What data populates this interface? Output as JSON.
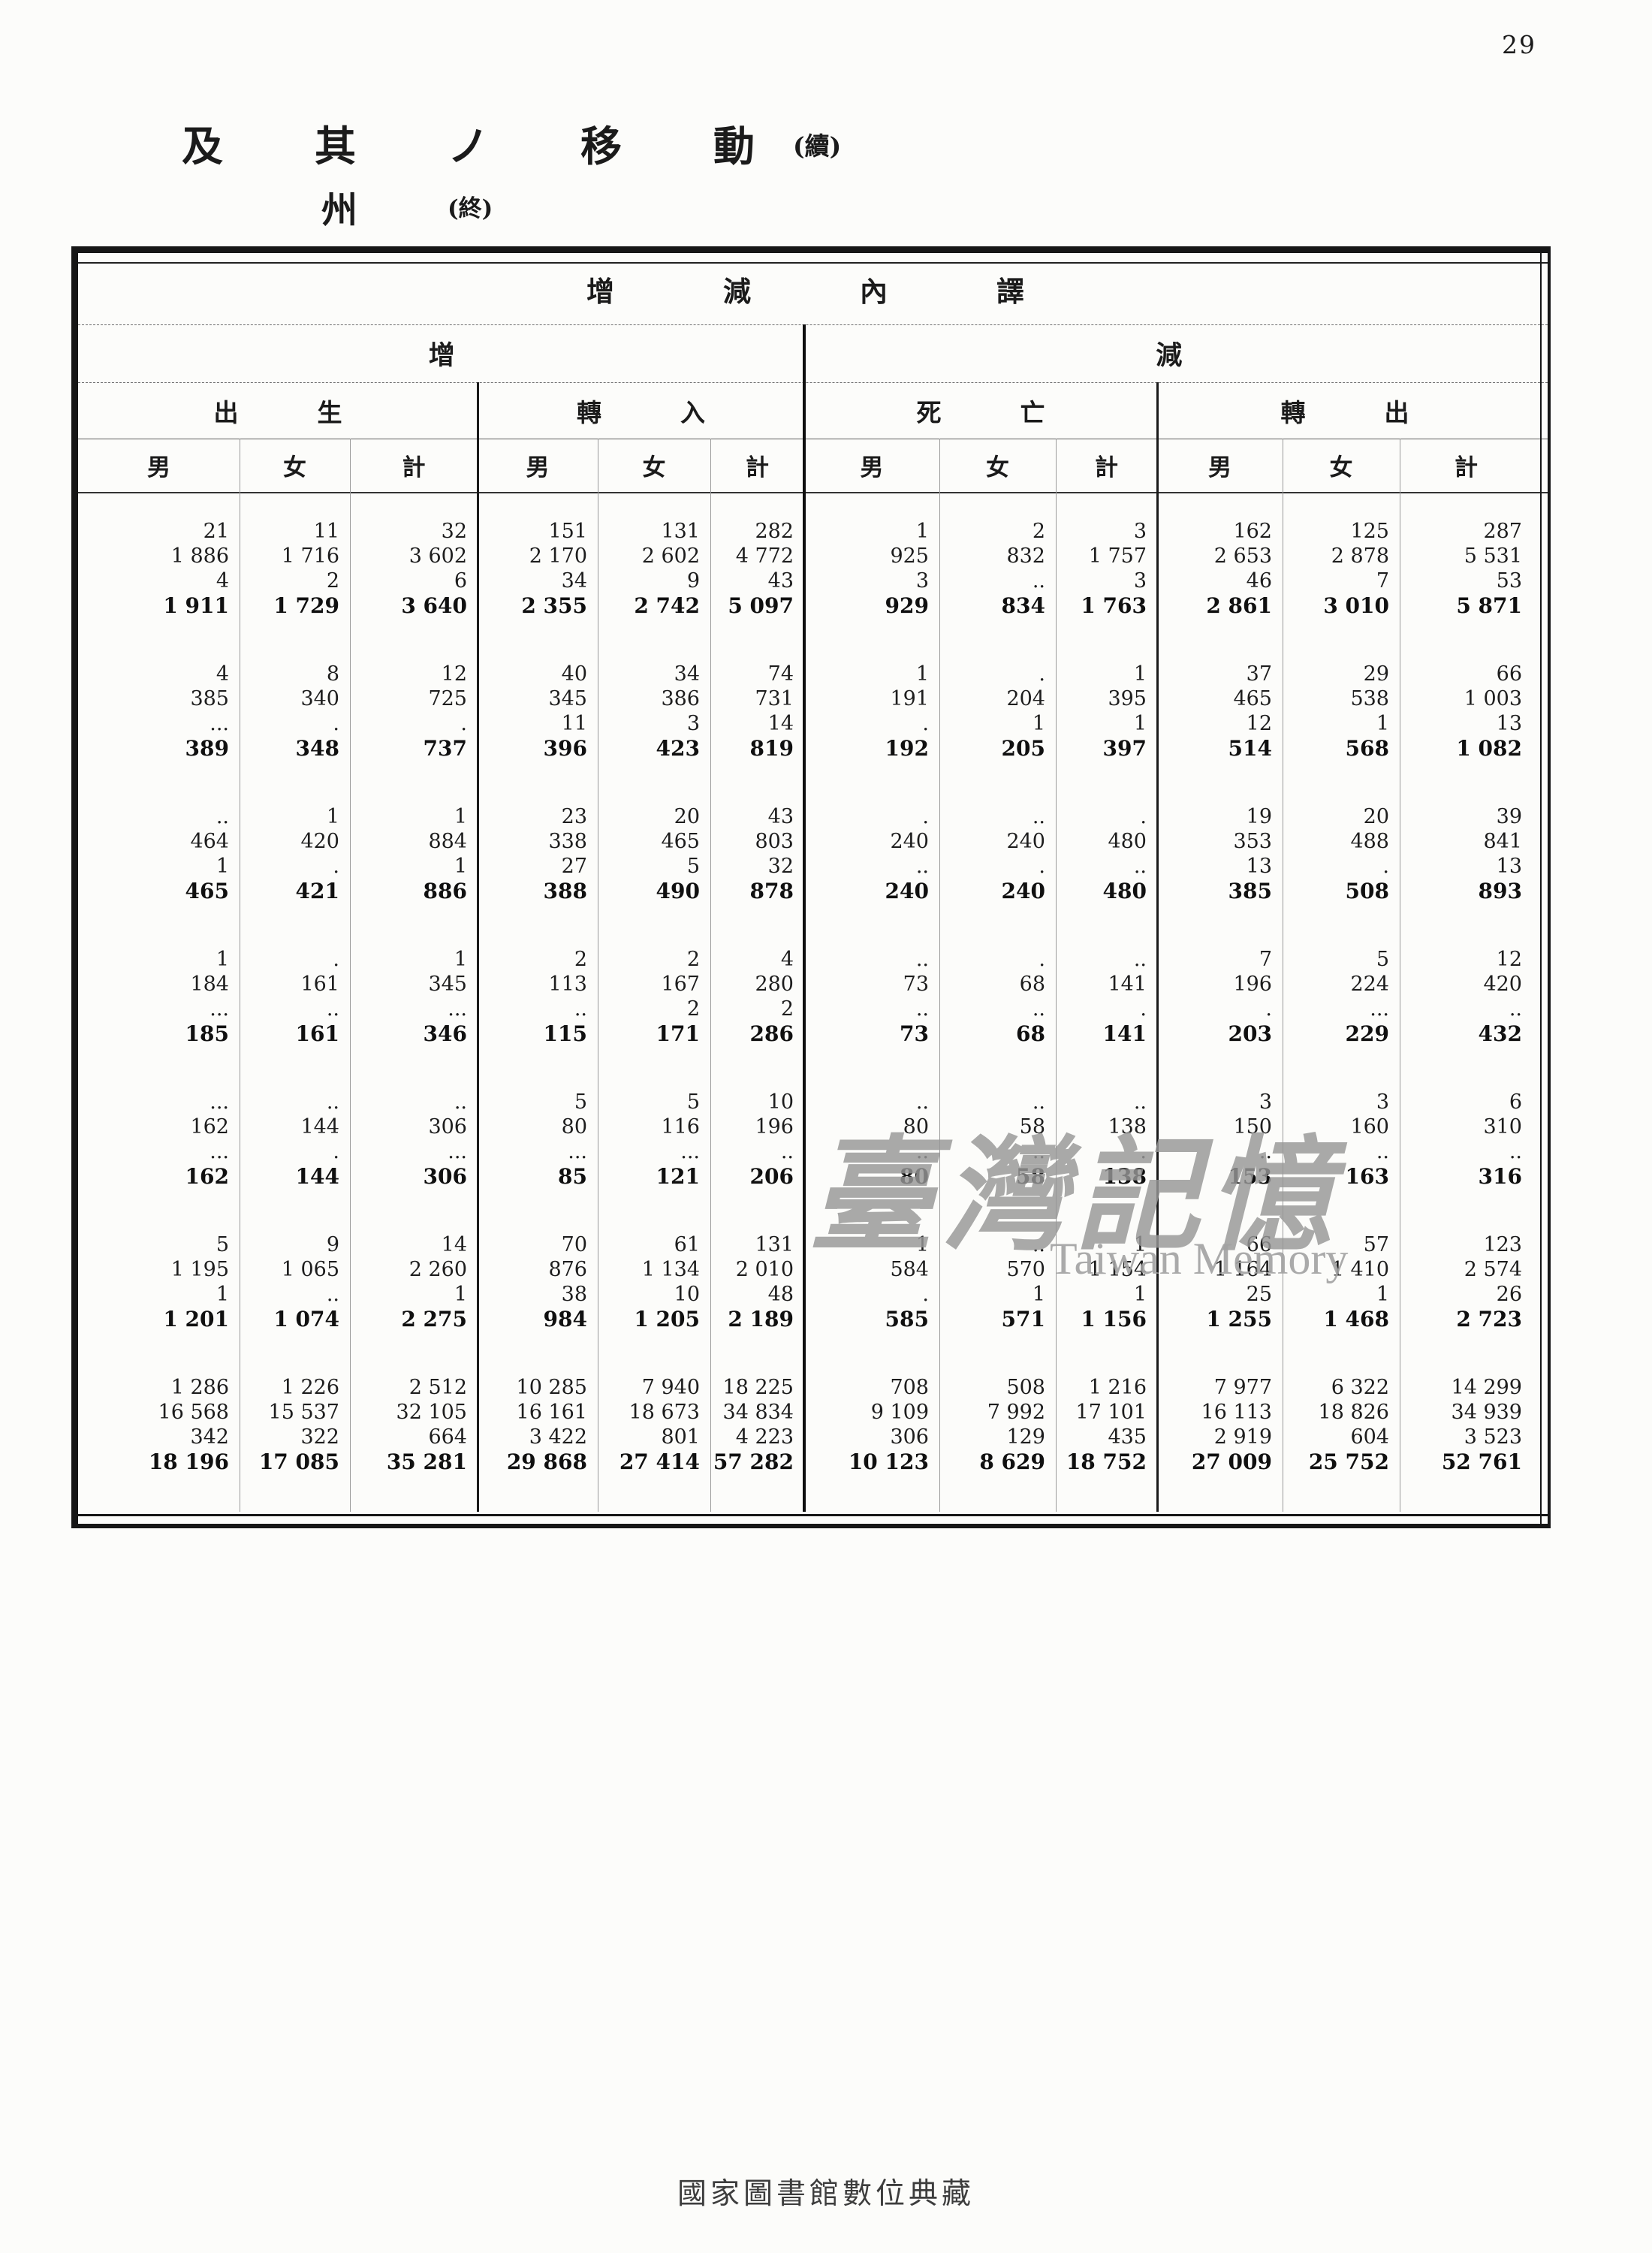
{
  "page": {
    "page_number": "29",
    "title_line1": "及其ノ移動",
    "title_line1_suffix": "(續)",
    "title_line2": "州",
    "title_line2_suffix": "(終)",
    "footer": "國家圖書館數位典藏",
    "watermark_cjk": "臺灣記憶",
    "watermark_latin": "Taiwan Memory",
    "ink_color": "#1b1b1b",
    "watermark_color": "#979797"
  },
  "table": {
    "header": {
      "top": "增減內譯",
      "halves": [
        "增",
        "減"
      ],
      "groups": [
        "出生",
        "轉入",
        "死亡",
        "轉出"
      ],
      "subcolumns": [
        "男",
        "女",
        "計"
      ]
    },
    "blocks": [
      {
        "rows": [
          [
            "21",
            "11",
            "32",
            "151",
            "131",
            "282",
            "1",
            "2",
            "3",
            "162",
            "125",
            "287"
          ],
          [
            "1 886",
            "1 716",
            "3 602",
            "2 170",
            "2 602",
            "4 772",
            "925",
            "832",
            "1 757",
            "2 653",
            "2 878",
            "5 531"
          ],
          [
            "4",
            "2",
            "6",
            "34",
            "9",
            "43",
            "3",
            "..",
            "3",
            "46",
            "7",
            "53"
          ],
          [
            "1 911",
            "1 729",
            "3 640",
            "2 355",
            "2 742",
            "5 097",
            "929",
            "834",
            "1 763",
            "2 861",
            "3 010",
            "5 871"
          ]
        ]
      },
      {
        "rows": [
          [
            "4",
            "8",
            "12",
            "40",
            "34",
            "74",
            "1",
            ".",
            "1",
            "37",
            "29",
            "66"
          ],
          [
            "385",
            "340",
            "725",
            "345",
            "386",
            "731",
            "191",
            "204",
            "395",
            "465",
            "538",
            "1 003"
          ],
          [
            "...",
            ".",
            ".",
            "11",
            "3",
            "14",
            ".",
            "1",
            "1",
            "12",
            "1",
            "13"
          ],
          [
            "389",
            "348",
            "737",
            "396",
            "423",
            "819",
            "192",
            "205",
            "397",
            "514",
            "568",
            "1 082"
          ]
        ]
      },
      {
        "rows": [
          [
            "..",
            "1",
            "1",
            "23",
            "20",
            "43",
            ".",
            "..",
            ".",
            "19",
            "20",
            "39"
          ],
          [
            "464",
            "420",
            "884",
            "338",
            "465",
            "803",
            "240",
            "240",
            "480",
            "353",
            "488",
            "841"
          ],
          [
            "1",
            ".",
            "1",
            "27",
            "5",
            "32",
            "..",
            ".",
            "..",
            "13",
            ".",
            "13"
          ],
          [
            "465",
            "421",
            "886",
            "388",
            "490",
            "878",
            "240",
            "240",
            "480",
            "385",
            "508",
            "893"
          ]
        ]
      },
      {
        "rows": [
          [
            "1",
            ".",
            "1",
            "2",
            "2",
            "4",
            "..",
            ".",
            "..",
            "7",
            "5",
            "12"
          ],
          [
            "184",
            "161",
            "345",
            "113",
            "167",
            "280",
            "73",
            "68",
            "141",
            "196",
            "224",
            "420"
          ],
          [
            "...",
            "..",
            "...",
            "..",
            "2",
            "2",
            "..",
            "..",
            ".",
            ".",
            "...",
            ".."
          ],
          [
            "185",
            "161",
            "346",
            "115",
            "171",
            "286",
            "73",
            "68",
            "141",
            "203",
            "229",
            "432"
          ]
        ]
      },
      {
        "rows": [
          [
            "...",
            "..",
            "..",
            "5",
            "5",
            "10",
            "..",
            "..",
            "..",
            "3",
            "3",
            "6"
          ],
          [
            "162",
            "144",
            "306",
            "80",
            "116",
            "196",
            "80",
            "58",
            "138",
            "150",
            "160",
            "310"
          ],
          [
            "...",
            ".",
            "...",
            "...",
            "...",
            "..",
            "..",
            "..",
            ".",
            "..",
            "..",
            ".."
          ],
          [
            "162",
            "144",
            "306",
            "85",
            "121",
            "206",
            "80",
            "58",
            "138",
            "153",
            "163",
            "316"
          ]
        ]
      },
      {
        "rows": [
          [
            "5",
            "9",
            "14",
            "70",
            "61",
            "131",
            "1",
            "..",
            "1",
            "66",
            "57",
            "123"
          ],
          [
            "1 195",
            "1 065",
            "2 260",
            "876",
            "1 134",
            "2 010",
            "584",
            "570",
            "1 154",
            "1 164",
            "1 410",
            "2 574"
          ],
          [
            "1",
            "..",
            "1",
            "38",
            "10",
            "48",
            ".",
            "1",
            "1",
            "25",
            "1",
            "26"
          ],
          [
            "1 201",
            "1 074",
            "2 275",
            "984",
            "1 205",
            "2 189",
            "585",
            "571",
            "1 156",
            "1 255",
            "1 468",
            "2 723"
          ]
        ]
      },
      {
        "rows": [
          [
            "1 286",
            "1 226",
            "2 512",
            "10 285",
            "7 940",
            "18 225",
            "708",
            "508",
            "1 216",
            "7 977",
            "6 322",
            "14 299"
          ],
          [
            "16 568",
            "15 537",
            "32 105",
            "16 161",
            "18 673",
            "34 834",
            "9 109",
            "7 992",
            "17 101",
            "16 113",
            "18 826",
            "34 939"
          ],
          [
            "342",
            "322",
            "664",
            "3 422",
            "801",
            "4 223",
            "306",
            "129",
            "435",
            "2 919",
            "604",
            "3 523"
          ],
          [
            "18 196",
            "17 085",
            "35 281",
            "29 868",
            "27 414",
            "57 282",
            "10 123",
            "8 629",
            "18 752",
            "27 009",
            "25 752",
            "52 761"
          ]
        ]
      }
    ]
  }
}
